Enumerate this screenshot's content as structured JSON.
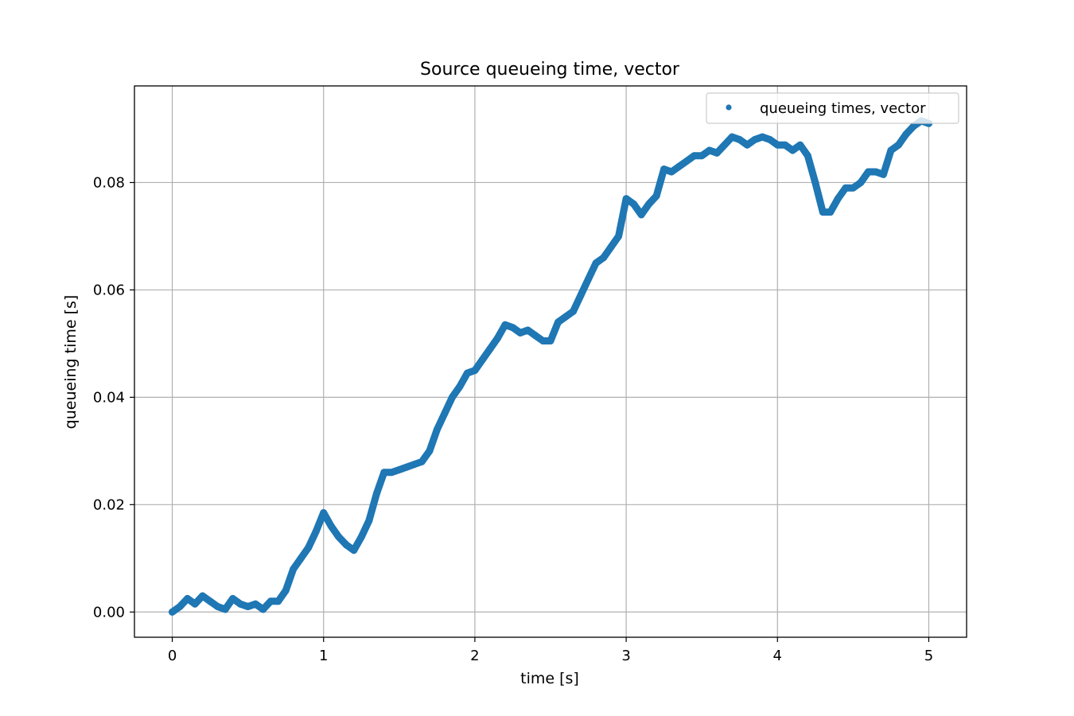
{
  "chart_data": {
    "type": "scatter",
    "title": "Source queueing time, vector",
    "xlabel": "time [s]",
    "ylabel": "queueing time [s]",
    "xlim": [
      -0.25,
      5.25
    ],
    "ylim": [
      -0.0047,
      0.098
    ],
    "xticks": [
      0,
      1,
      2,
      3,
      4,
      5
    ],
    "xtick_labels": [
      "0",
      "1",
      "2",
      "3",
      "4",
      "5"
    ],
    "yticks": [
      0.0,
      0.02,
      0.04,
      0.06,
      0.08
    ],
    "ytick_labels": [
      "0.00",
      "0.02",
      "0.04",
      "0.06",
      "0.08"
    ],
    "grid": true,
    "legend": {
      "position": "top-right"
    },
    "series": [
      {
        "name": "queueing times, vector",
        "color": "#1f77b4",
        "marker": "circle",
        "x": [
          0.0,
          0.05,
          0.1,
          0.15,
          0.2,
          0.25,
          0.3,
          0.35,
          0.4,
          0.45,
          0.5,
          0.55,
          0.6,
          0.65,
          0.7,
          0.75,
          0.8,
          0.85,
          0.9,
          0.95,
          1.0,
          1.05,
          1.1,
          1.15,
          1.2,
          1.25,
          1.3,
          1.35,
          1.4,
          1.45,
          1.5,
          1.55,
          1.6,
          1.65,
          1.7,
          1.75,
          1.8,
          1.85,
          1.9,
          1.95,
          2.0,
          2.05,
          2.1,
          2.15,
          2.2,
          2.25,
          2.3,
          2.35,
          2.4,
          2.45,
          2.5,
          2.55,
          2.6,
          2.65,
          2.7,
          2.75,
          2.8,
          2.85,
          2.9,
          2.95,
          3.0,
          3.05,
          3.1,
          3.15,
          3.2,
          3.25,
          3.3,
          3.35,
          3.4,
          3.45,
          3.5,
          3.55,
          3.6,
          3.65,
          3.7,
          3.75,
          3.8,
          3.85,
          3.9,
          3.95,
          4.0,
          4.05,
          4.1,
          4.15,
          4.2,
          4.25,
          4.3,
          4.35,
          4.4,
          4.45,
          4.5,
          4.55,
          4.6,
          4.65,
          4.7,
          4.75,
          4.8,
          4.85,
          4.9,
          4.95,
          5.0
        ],
        "y": [
          0.0,
          0.001,
          0.0025,
          0.0015,
          0.003,
          0.002,
          0.001,
          0.0005,
          0.0025,
          0.0015,
          0.001,
          0.0015,
          0.0005,
          0.002,
          0.002,
          0.004,
          0.008,
          0.01,
          0.012,
          0.015,
          0.0185,
          0.016,
          0.014,
          0.0125,
          0.0115,
          0.014,
          0.017,
          0.022,
          0.026,
          0.026,
          0.0265,
          0.027,
          0.0275,
          0.028,
          0.03,
          0.034,
          0.037,
          0.04,
          0.042,
          0.0445,
          0.045,
          0.047,
          0.049,
          0.051,
          0.0535,
          0.053,
          0.052,
          0.0525,
          0.0515,
          0.0505,
          0.0505,
          0.054,
          0.055,
          0.056,
          0.059,
          0.062,
          0.065,
          0.066,
          0.068,
          0.07,
          0.077,
          0.076,
          0.074,
          0.076,
          0.0775,
          0.0825,
          0.082,
          0.083,
          0.084,
          0.085,
          0.085,
          0.086,
          0.0855,
          0.087,
          0.0885,
          0.088,
          0.087,
          0.088,
          0.0885,
          0.088,
          0.087,
          0.087,
          0.086,
          0.087,
          0.085,
          0.08,
          0.0745,
          0.0745,
          0.077,
          0.079,
          0.079,
          0.08,
          0.082,
          0.082,
          0.0815,
          0.086,
          0.087,
          0.089,
          0.0905,
          0.0915,
          0.091
        ]
      }
    ]
  }
}
